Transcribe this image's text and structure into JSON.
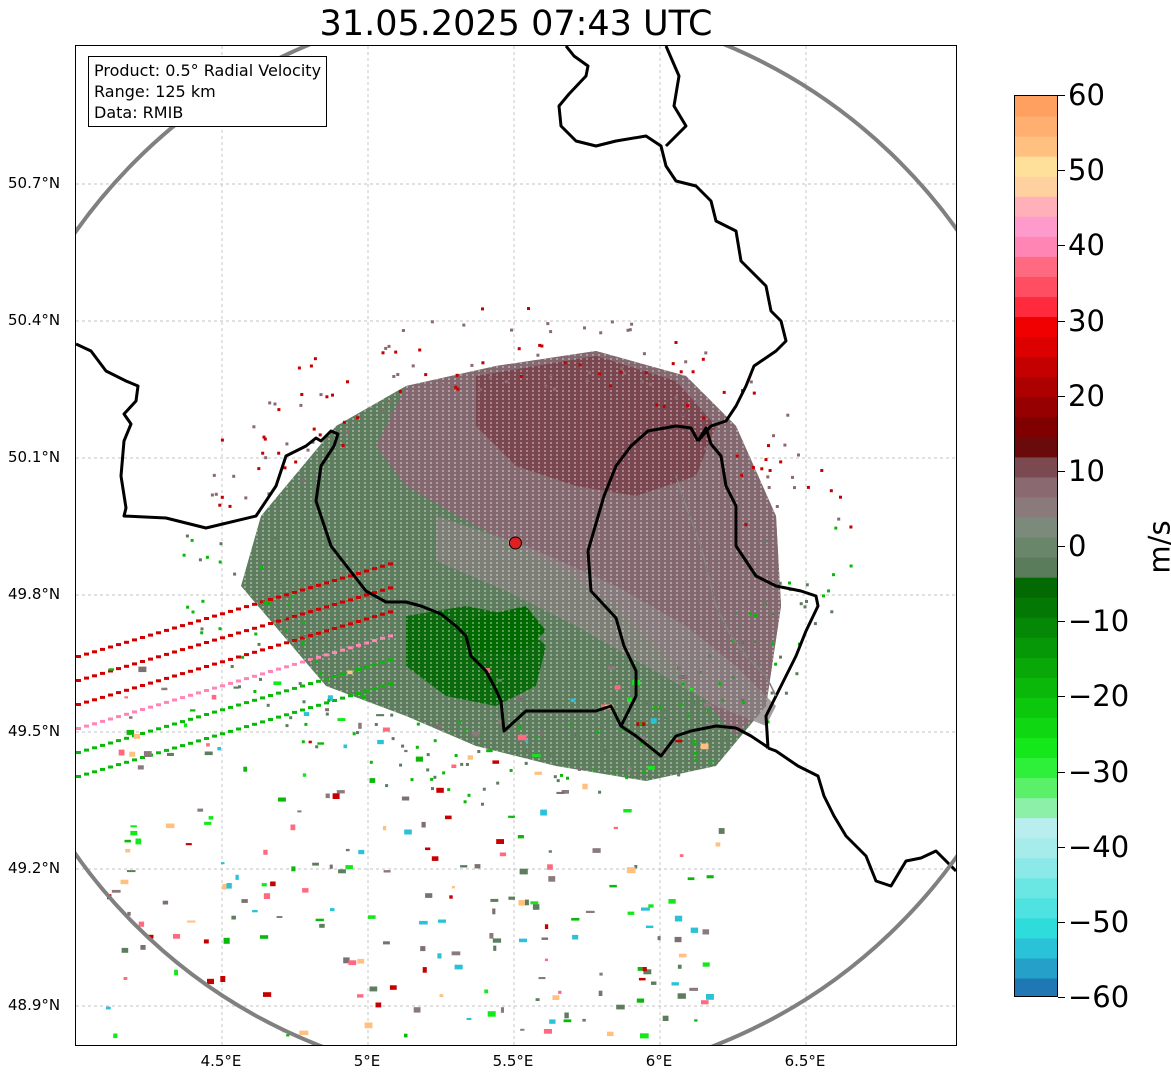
{
  "title": "31.05.2025 07:43 UTC",
  "info": {
    "product": "Product: 0.5° Radial Velocity",
    "range": "Range: 125 km",
    "data": "Data: RMIB"
  },
  "axes": {
    "lat_labels": [
      "50.7°N",
      "50.4°N",
      "50.1°N",
      "49.8°N",
      "49.5°N",
      "49.2°N",
      "48.9°N"
    ],
    "lon_labels": [
      "4.5°E",
      "5°E",
      "5.5°E",
      "6°E",
      "6.5°E"
    ],
    "lat_values": [
      50.7,
      50.4,
      50.1,
      49.8,
      49.5,
      49.2,
      48.9
    ],
    "lon_values": [
      4.5,
      5.0,
      5.5,
      6.0,
      6.5
    ],
    "lon_range": [
      4.0,
      7.0
    ],
    "lat_range": [
      48.8,
      51.0
    ],
    "grid": true
  },
  "colorbar": {
    "unit": "m/s",
    "range": [
      -60,
      60
    ],
    "tick_labels": [
      "60",
      "50",
      "40",
      "30",
      "20",
      "10",
      "0",
      "−10",
      "−20",
      "−30",
      "−40",
      "−50",
      "−60"
    ],
    "tick_values": [
      60,
      50,
      40,
      30,
      20,
      10,
      0,
      -10,
      -20,
      -30,
      -40,
      -50,
      -60
    ],
    "colors": [
      "#1f77b4",
      "#25a0c8",
      "#2ac2d6",
      "#2fdcdc",
      "#4ee3e0",
      "#6ae6e3",
      "#8be9e7",
      "#a5ecea",
      "#b8eeee",
      "#8cf0a8",
      "#5af06a",
      "#2ef03a",
      "#14e81a",
      "#0fd812",
      "#0cc80c",
      "#0ab80a",
      "#08a808",
      "#069806",
      "#058805",
      "#047804",
      "#036a03",
      "#5a7c5a",
      "#6a866a",
      "#7c8a7c",
      "#8a7a7c",
      "#8a6a70",
      "#7a4a50",
      "#6b0a0a",
      "#800000",
      "#960000",
      "#ad0000",
      "#c50000",
      "#dc0000",
      "#f00000",
      "#ff2a3c",
      "#ff4e62",
      "#ff6a80",
      "#ff86b4",
      "#ff9acc",
      "#ffb0b8",
      "#ffd0a0",
      "#ffe09a",
      "#ffc080",
      "#ffb070",
      "#ffa060"
    ]
  },
  "radar": {
    "site_lon": 5.505,
    "site_lat": 49.914,
    "site_color": "#e02020",
    "range_ring_color": "#808080"
  }
}
